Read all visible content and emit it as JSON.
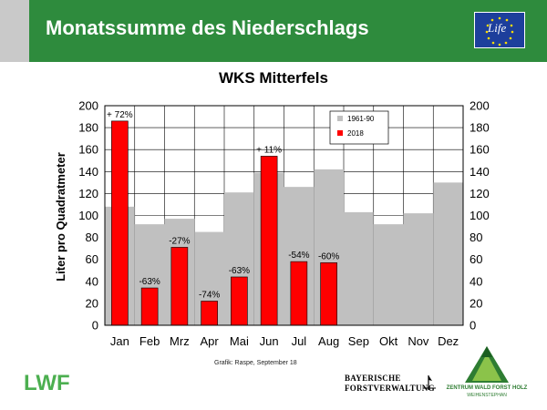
{
  "header": {
    "title": "Monatssumme des Niederschlags",
    "eu_logo_text": "Life"
  },
  "chart_data": {
    "type": "bar",
    "title": "WKS Mitterfels",
    "ylabel": "Liter pro Quadratmeter",
    "xlabel": "",
    "ylim": [
      0,
      200
    ],
    "yticks": [
      0,
      20,
      40,
      60,
      80,
      100,
      120,
      140,
      160,
      180,
      200
    ],
    "categories": [
      "Jan",
      "Feb",
      "Mrz",
      "Apr",
      "Mai",
      "Jun",
      "Jul",
      "Aug",
      "Sep",
      "Okt",
      "Nov",
      "Dez"
    ],
    "series": [
      {
        "name": "1961-90",
        "color": "#c0c0c0",
        "values": [
          108,
          92,
          97,
          85,
          121,
          139,
          126,
          142,
          103,
          92,
          102,
          130
        ]
      },
      {
        "name": "2018",
        "color": "#ff0000",
        "values": [
          186,
          34,
          71,
          22,
          44,
          154,
          58,
          57,
          null,
          null,
          null,
          null
        ]
      }
    ],
    "annotations": [
      "+ 72%",
      "-63%",
      "-27%",
      "-74%",
      "-63%",
      "+ 11%",
      "-54%",
      "-60%"
    ],
    "legend_position": "top-right",
    "grid": true
  },
  "footer": {
    "credit": "Grafik: Raspe, September 18",
    "lwf_logo": "LWF",
    "bayern_line1": "BAYERISCHE",
    "bayern_line2": "FORSTVERWALTUNG",
    "zentrum_line1": "ZENTRUM WALD FORST HOLZ",
    "zentrum_line2": "WEIHENSTEPHAN"
  }
}
